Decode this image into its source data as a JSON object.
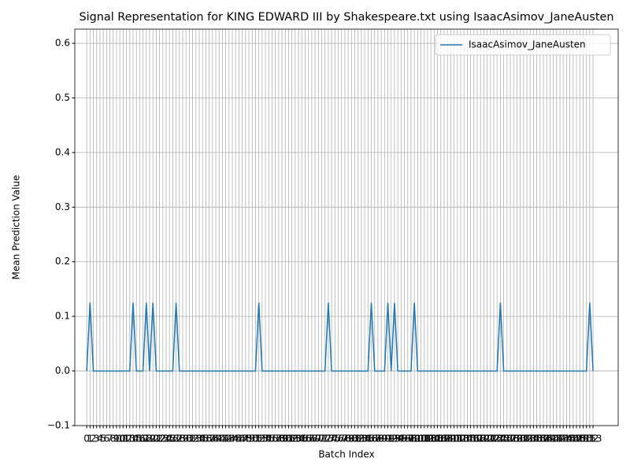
{
  "chart_data": {
    "type": "line",
    "title": "Signal Representation for KING EDWARD III by Shakespeare.txt using IsaacAsimov_JaneAusten",
    "x_label": "Batch Index",
    "y_label": "Mean Prediction Value",
    "x": [
      0,
      1,
      2,
      3,
      4,
      5,
      6,
      7,
      8,
      9,
      10,
      11,
      12,
      13,
      14,
      15,
      16,
      17,
      18,
      19,
      20,
      21,
      22,
      23,
      24,
      25,
      26,
      27,
      28,
      29,
      30,
      31,
      32,
      33,
      34,
      35,
      36,
      37,
      38,
      39,
      40,
      41,
      42,
      43,
      44,
      45,
      46,
      47,
      48,
      49,
      50,
      51,
      52,
      53,
      54,
      55,
      56,
      57,
      58,
      59,
      60,
      61,
      62,
      63,
      64,
      65,
      66,
      67,
      68,
      69,
      70,
      71,
      72,
      73,
      74,
      75,
      76,
      77,
      78,
      79,
      80,
      81,
      82,
      83,
      84,
      85,
      86,
      87,
      88,
      89,
      90,
      91,
      92,
      93,
      94,
      95,
      96,
      97,
      98,
      99,
      100,
      101,
      102,
      103,
      104,
      105,
      106,
      107,
      108,
      109,
      110,
      111,
      112,
      113,
      114,
      115,
      116,
      117,
      118,
      119,
      120,
      121,
      122,
      123,
      124,
      125,
      126,
      127,
      128,
      129,
      130,
      131,
      132,
      133,
      134,
      135,
      136,
      137,
      138,
      139,
      140,
      141,
      142,
      143,
      144,
      145,
      146,
      147,
      148,
      149,
      150,
      151,
      152,
      153
    ],
    "series": [
      {
        "name": "IsaacAsimov_JaneAusten",
        "color": "#1f77b4",
        "values": [
          0,
          0.125,
          0,
          0,
          0,
          0,
          0,
          0,
          0,
          0,
          0,
          0,
          0,
          0,
          0.125,
          0,
          0,
          0,
          0.125,
          0,
          0.125,
          0,
          0,
          0,
          0,
          0,
          0,
          0.125,
          0,
          0,
          0,
          0,
          0,
          0,
          0,
          0,
          0,
          0,
          0,
          0,
          0,
          0,
          0,
          0,
          0,
          0,
          0,
          0,
          0,
          0,
          0,
          0,
          0.125,
          0,
          0,
          0,
          0,
          0,
          0,
          0,
          0,
          0,
          0,
          0,
          0,
          0,
          0,
          0,
          0,
          0,
          0,
          0,
          0,
          0.125,
          0,
          0,
          0,
          0,
          0,
          0,
          0,
          0,
          0,
          0,
          0,
          0,
          0.125,
          0,
          0,
          0,
          0,
          0.125,
          0,
          0.125,
          0,
          0,
          0,
          0,
          0,
          0.125,
          0,
          0,
          0,
          0,
          0,
          0,
          0,
          0,
          0,
          0,
          0,
          0,
          0,
          0,
          0,
          0,
          0,
          0,
          0,
          0,
          0,
          0,
          0,
          0,
          0,
          0.125,
          0,
          0,
          0,
          0,
          0,
          0,
          0,
          0,
          0,
          0,
          0,
          0,
          0,
          0,
          0,
          0,
          0,
          0,
          0,
          0,
          0,
          0,
          0,
          0,
          0,
          0,
          0.125,
          0
        ]
      }
    ],
    "xlim": [
      -3.6,
      160.6
    ],
    "ylim": [
      -0.1,
      0.626
    ],
    "xticks": [
      0,
      1,
      2,
      3,
      4,
      5,
      6,
      7,
      8,
      9,
      10,
      11,
      12,
      13,
      14,
      15,
      16,
      17,
      18,
      19,
      20,
      21,
      22,
      23,
      24,
      25,
      26,
      27,
      28,
      29,
      30,
      31,
      32,
      33,
      34,
      35,
      36,
      37,
      38,
      39,
      40,
      41,
      42,
      43,
      44,
      45,
      46,
      47,
      48,
      49,
      50,
      51,
      52,
      53,
      54,
      55,
      56,
      57,
      58,
      59,
      60,
      61,
      62,
      63,
      64,
      65,
      66,
      67,
      68,
      69,
      70,
      71,
      72,
      73,
      74,
      75,
      76,
      77,
      78,
      79,
      80,
      81,
      82,
      83,
      84,
      85,
      86,
      87,
      88,
      89,
      90,
      91,
      92,
      93,
      94,
      95,
      96,
      97,
      98,
      99,
      100,
      101,
      102,
      103,
      104,
      105,
      106,
      107,
      108,
      109,
      110,
      111,
      112,
      113,
      114,
      115,
      116,
      117,
      118,
      119,
      120,
      121,
      122,
      123,
      124,
      125,
      126,
      127,
      128,
      129,
      130,
      131,
      132,
      133,
      134,
      135,
      136,
      137,
      138,
      139,
      140,
      141,
      142,
      143,
      144,
      145,
      146,
      147,
      148,
      149,
      150,
      151,
      152,
      153
    ],
    "yticks": [
      {
        "value": -0.1,
        "label": "−0.1"
      },
      {
        "value": 0,
        "label": "0.0"
      },
      {
        "value": 0.1,
        "label": "0.1"
      },
      {
        "value": 0.2,
        "label": "0.2"
      },
      {
        "value": 0.3,
        "label": "0.3"
      },
      {
        "value": 0.4,
        "label": "0.4"
      },
      {
        "value": 0.5,
        "label": "0.5"
      },
      {
        "value": 0.6,
        "label": "0.6"
      }
    ],
    "grid": true,
    "legend": "upper right"
  }
}
